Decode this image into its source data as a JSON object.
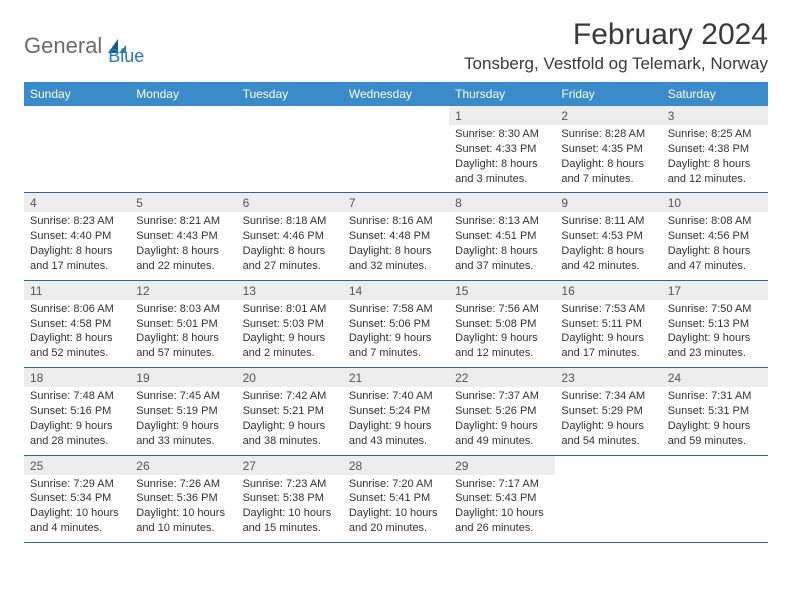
{
  "logo": {
    "part1": "General",
    "part2": "Blue"
  },
  "title": "February 2024",
  "location": "Tonsberg, Vestfold og Telemark, Norway",
  "colors": {
    "header_bg": "#3a8bc9",
    "header_text": "#ffffff",
    "daynum_bg": "#ededed",
    "border": "#2a6a9a",
    "logo_gray": "#6b6b6b",
    "logo_blue": "#2a7ab8"
  },
  "weekdays": [
    "Sunday",
    "Monday",
    "Tuesday",
    "Wednesday",
    "Thursday",
    "Friday",
    "Saturday"
  ],
  "weeks": [
    {
      "nums": [
        "",
        "",
        "",
        "",
        "1",
        "2",
        "3"
      ],
      "cells": [
        null,
        null,
        null,
        null,
        {
          "sr": "Sunrise: 8:30 AM",
          "ss": "Sunset: 4:33 PM",
          "d1": "Daylight: 8 hours",
          "d2": "and 3 minutes."
        },
        {
          "sr": "Sunrise: 8:28 AM",
          "ss": "Sunset: 4:35 PM",
          "d1": "Daylight: 8 hours",
          "d2": "and 7 minutes."
        },
        {
          "sr": "Sunrise: 8:25 AM",
          "ss": "Sunset: 4:38 PM",
          "d1": "Daylight: 8 hours",
          "d2": "and 12 minutes."
        }
      ]
    },
    {
      "nums": [
        "4",
        "5",
        "6",
        "7",
        "8",
        "9",
        "10"
      ],
      "cells": [
        {
          "sr": "Sunrise: 8:23 AM",
          "ss": "Sunset: 4:40 PM",
          "d1": "Daylight: 8 hours",
          "d2": "and 17 minutes."
        },
        {
          "sr": "Sunrise: 8:21 AM",
          "ss": "Sunset: 4:43 PM",
          "d1": "Daylight: 8 hours",
          "d2": "and 22 minutes."
        },
        {
          "sr": "Sunrise: 8:18 AM",
          "ss": "Sunset: 4:46 PM",
          "d1": "Daylight: 8 hours",
          "d2": "and 27 minutes."
        },
        {
          "sr": "Sunrise: 8:16 AM",
          "ss": "Sunset: 4:48 PM",
          "d1": "Daylight: 8 hours",
          "d2": "and 32 minutes."
        },
        {
          "sr": "Sunrise: 8:13 AM",
          "ss": "Sunset: 4:51 PM",
          "d1": "Daylight: 8 hours",
          "d2": "and 37 minutes."
        },
        {
          "sr": "Sunrise: 8:11 AM",
          "ss": "Sunset: 4:53 PM",
          "d1": "Daylight: 8 hours",
          "d2": "and 42 minutes."
        },
        {
          "sr": "Sunrise: 8:08 AM",
          "ss": "Sunset: 4:56 PM",
          "d1": "Daylight: 8 hours",
          "d2": "and 47 minutes."
        }
      ]
    },
    {
      "nums": [
        "11",
        "12",
        "13",
        "14",
        "15",
        "16",
        "17"
      ],
      "cells": [
        {
          "sr": "Sunrise: 8:06 AM",
          "ss": "Sunset: 4:58 PM",
          "d1": "Daylight: 8 hours",
          "d2": "and 52 minutes."
        },
        {
          "sr": "Sunrise: 8:03 AM",
          "ss": "Sunset: 5:01 PM",
          "d1": "Daylight: 8 hours",
          "d2": "and 57 minutes."
        },
        {
          "sr": "Sunrise: 8:01 AM",
          "ss": "Sunset: 5:03 PM",
          "d1": "Daylight: 9 hours",
          "d2": "and 2 minutes."
        },
        {
          "sr": "Sunrise: 7:58 AM",
          "ss": "Sunset: 5:06 PM",
          "d1": "Daylight: 9 hours",
          "d2": "and 7 minutes."
        },
        {
          "sr": "Sunrise: 7:56 AM",
          "ss": "Sunset: 5:08 PM",
          "d1": "Daylight: 9 hours",
          "d2": "and 12 minutes."
        },
        {
          "sr": "Sunrise: 7:53 AM",
          "ss": "Sunset: 5:11 PM",
          "d1": "Daylight: 9 hours",
          "d2": "and 17 minutes."
        },
        {
          "sr": "Sunrise: 7:50 AM",
          "ss": "Sunset: 5:13 PM",
          "d1": "Daylight: 9 hours",
          "d2": "and 23 minutes."
        }
      ]
    },
    {
      "nums": [
        "18",
        "19",
        "20",
        "21",
        "22",
        "23",
        "24"
      ],
      "cells": [
        {
          "sr": "Sunrise: 7:48 AM",
          "ss": "Sunset: 5:16 PM",
          "d1": "Daylight: 9 hours",
          "d2": "and 28 minutes."
        },
        {
          "sr": "Sunrise: 7:45 AM",
          "ss": "Sunset: 5:19 PM",
          "d1": "Daylight: 9 hours",
          "d2": "and 33 minutes."
        },
        {
          "sr": "Sunrise: 7:42 AM",
          "ss": "Sunset: 5:21 PM",
          "d1": "Daylight: 9 hours",
          "d2": "and 38 minutes."
        },
        {
          "sr": "Sunrise: 7:40 AM",
          "ss": "Sunset: 5:24 PM",
          "d1": "Daylight: 9 hours",
          "d2": "and 43 minutes."
        },
        {
          "sr": "Sunrise: 7:37 AM",
          "ss": "Sunset: 5:26 PM",
          "d1": "Daylight: 9 hours",
          "d2": "and 49 minutes."
        },
        {
          "sr": "Sunrise: 7:34 AM",
          "ss": "Sunset: 5:29 PM",
          "d1": "Daylight: 9 hours",
          "d2": "and 54 minutes."
        },
        {
          "sr": "Sunrise: 7:31 AM",
          "ss": "Sunset: 5:31 PM",
          "d1": "Daylight: 9 hours",
          "d2": "and 59 minutes."
        }
      ]
    },
    {
      "nums": [
        "25",
        "26",
        "27",
        "28",
        "29",
        "",
        ""
      ],
      "cells": [
        {
          "sr": "Sunrise: 7:29 AM",
          "ss": "Sunset: 5:34 PM",
          "d1": "Daylight: 10 hours",
          "d2": "and 4 minutes."
        },
        {
          "sr": "Sunrise: 7:26 AM",
          "ss": "Sunset: 5:36 PM",
          "d1": "Daylight: 10 hours",
          "d2": "and 10 minutes."
        },
        {
          "sr": "Sunrise: 7:23 AM",
          "ss": "Sunset: 5:38 PM",
          "d1": "Daylight: 10 hours",
          "d2": "and 15 minutes."
        },
        {
          "sr": "Sunrise: 7:20 AM",
          "ss": "Sunset: 5:41 PM",
          "d1": "Daylight: 10 hours",
          "d2": "and 20 minutes."
        },
        {
          "sr": "Sunrise: 7:17 AM",
          "ss": "Sunset: 5:43 PM",
          "d1": "Daylight: 10 hours",
          "d2": "and 26 minutes."
        },
        null,
        null
      ]
    }
  ]
}
